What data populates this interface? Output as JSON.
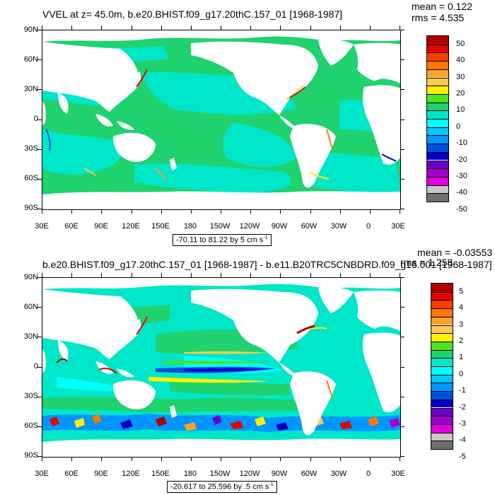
{
  "panels": [
    {
      "title": "VVEL at z=  45.0m, b.e20.BHIST.f09_g17.20thC.157_01 [1968-1987]",
      "mean": "mean = 0.122",
      "rms": "rms = 4.535",
      "range_text": "-70.11 to 81.22 by 5 cm s",
      "range_unit_sup": "-1",
      "colorbar_labels": [
        "50",
        "40",
        "30",
        "20",
        "10",
        "0",
        "-10",
        "-20",
        "-30",
        "-40",
        "-50"
      ]
    },
    {
      "title": "b.e20.BHIST.f09_g17.20thC.157_01 [1968-1987] - b.e11.B20TRC5CNBDRD.f09_g16.001 [1968-1987]",
      "mean": "mean = -0.03553",
      "rms": "rms = 1.258",
      "range_text": "-20.617 to 25.596 by .5 cm s",
      "range_unit_sup": "-1",
      "colorbar_labels": [
        "5",
        "4",
        "3",
        "2",
        "1",
        "0",
        "-1",
        "-2",
        "-3",
        "-4",
        "-5"
      ]
    }
  ],
  "lat_labels": [
    "90N",
    "60N",
    "30N",
    "0",
    "30S",
    "60S",
    "90S"
  ],
  "lon_labels": [
    "30E",
    "60E",
    "90E",
    "120E",
    "150E",
    "180",
    "150W",
    "120W",
    "90W",
    "60W",
    "30W",
    "0",
    "30E"
  ],
  "colorbar_colors": [
    "#b00000",
    "#e60000",
    "#ff3c00",
    "#ff7800",
    "#ffa028",
    "#ffc850",
    "#fff000",
    "#50e020",
    "#1fd26e",
    "#00e6c8",
    "#00ffff",
    "#00c8ff",
    "#0096ff",
    "#0050e0",
    "#0000c8",
    "#6e00c8",
    "#a000c8",
    "#e000e0",
    "#c8c8c8",
    "#6e6e6e"
  ]
}
